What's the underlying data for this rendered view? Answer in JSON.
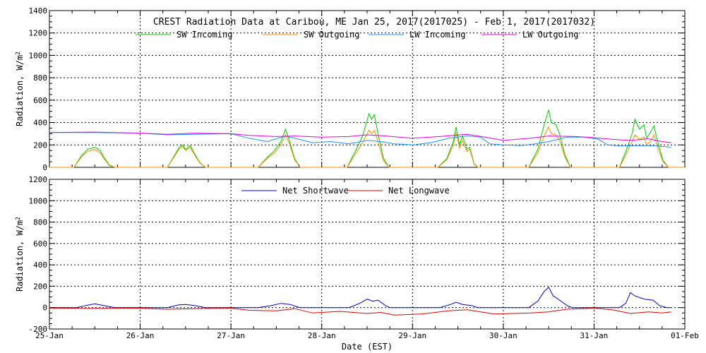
{
  "title": "CREST Radiation Data at Caribou, ME   Jan 25, 2017(2017025) - Feb  1, 2017(2017032)",
  "xlabel": "Date (EST)",
  "x_ticks": [
    "25-Jan",
    "26-Jan",
    "27-Jan",
    "28-Jan",
    "29-Jan",
    "30-Jan",
    "31-Jan",
    "01-Feb"
  ],
  "chart_data": [
    {
      "type": "line",
      "title": "CREST Radiation Data at Caribou, ME   Jan 25, 2017(2017025) - Feb  1, 2017(2017032)",
      "xlabel": "",
      "ylabel": "Radiation, W/m^2",
      "xlim": [
        0,
        7
      ],
      "ylim": [
        0,
        1400
      ],
      "y_ticks": [
        0,
        200,
        400,
        600,
        800,
        1000,
        1200,
        1400
      ],
      "grid": true,
      "legend": "top",
      "series": [
        {
          "name": "SW Incoming",
          "color": "#00cc00",
          "points": [
            [
              0,
              0
            ],
            [
              0.27,
              0
            ],
            [
              0.35,
              100
            ],
            [
              0.42,
              160
            ],
            [
              0.5,
              180
            ],
            [
              0.56,
              150
            ],
            [
              0.6,
              90
            ],
            [
              0.66,
              20
            ],
            [
              0.72,
              0
            ],
            [
              1.3,
              0
            ],
            [
              1.38,
              110
            ],
            [
              1.43,
              180
            ],
            [
              1.47,
              200
            ],
            [
              1.5,
              160
            ],
            [
              1.55,
              195
            ],
            [
              1.6,
              120
            ],
            [
              1.66,
              40
            ],
            [
              1.72,
              0
            ],
            [
              2.3,
              0
            ],
            [
              2.4,
              90
            ],
            [
              2.48,
              150
            ],
            [
              2.55,
              230
            ],
            [
              2.6,
              340
            ],
            [
              2.64,
              250
            ],
            [
              2.7,
              80
            ],
            [
              2.76,
              0
            ],
            [
              3.28,
              0
            ],
            [
              3.38,
              160
            ],
            [
              3.45,
              280
            ],
            [
              3.5,
              420
            ],
            [
              3.52,
              480
            ],
            [
              3.55,
              430
            ],
            [
              3.58,
              470
            ],
            [
              3.62,
              300
            ],
            [
              3.68,
              80
            ],
            [
              3.74,
              0
            ],
            [
              4.28,
              0
            ],
            [
              4.38,
              80
            ],
            [
              4.45,
              230
            ],
            [
              4.48,
              360
            ],
            [
              4.52,
              200
            ],
            [
              4.55,
              280
            ],
            [
              4.6,
              160
            ],
            [
              4.63,
              180
            ],
            [
              4.68,
              30
            ],
            [
              4.72,
              0
            ],
            [
              5.28,
              0
            ],
            [
              5.38,
              160
            ],
            [
              5.45,
              380
            ],
            [
              5.5,
              510
            ],
            [
              5.53,
              400
            ],
            [
              5.58,
              380
            ],
            [
              5.62,
              300
            ],
            [
              5.68,
              110
            ],
            [
              5.74,
              0
            ],
            [
              6.28,
              0
            ],
            [
              6.35,
              140
            ],
            [
              6.42,
              300
            ],
            [
              6.45,
              430
            ],
            [
              6.5,
              340
            ],
            [
              6.55,
              380
            ],
            [
              6.58,
              260
            ],
            [
              6.62,
              310
            ],
            [
              6.66,
              370
            ],
            [
              6.7,
              230
            ],
            [
              6.76,
              60
            ],
            [
              6.82,
              0
            ],
            [
              7,
              0
            ]
          ]
        },
        {
          "name": "SW Outgoing",
          "color": "#ff8c00",
          "points": [
            [
              0,
              0
            ],
            [
              0.27,
              0
            ],
            [
              0.35,
              90
            ],
            [
              0.42,
              140
            ],
            [
              0.5,
              160
            ],
            [
              0.56,
              130
            ],
            [
              0.6,
              80
            ],
            [
              0.66,
              15
            ],
            [
              0.72,
              0
            ],
            [
              1.3,
              0
            ],
            [
              1.38,
              100
            ],
            [
              1.43,
              165
            ],
            [
              1.47,
              185
            ],
            [
              1.5,
              150
            ],
            [
              1.55,
              180
            ],
            [
              1.6,
              110
            ],
            [
              1.66,
              35
            ],
            [
              1.72,
              0
            ],
            [
              2.3,
              0
            ],
            [
              2.4,
              80
            ],
            [
              2.48,
              130
            ],
            [
              2.55,
              200
            ],
            [
              2.6,
              290
            ],
            [
              2.64,
              220
            ],
            [
              2.7,
              70
            ],
            [
              2.76,
              0
            ],
            [
              3.28,
              0
            ],
            [
              3.38,
              130
            ],
            [
              3.45,
              220
            ],
            [
              3.5,
              300
            ],
            [
              3.52,
              330
            ],
            [
              3.55,
              300
            ],
            [
              3.58,
              330
            ],
            [
              3.62,
              230
            ],
            [
              3.68,
              60
            ],
            [
              3.74,
              0
            ],
            [
              4.28,
              0
            ],
            [
              4.38,
              70
            ],
            [
              4.45,
              200
            ],
            [
              4.48,
              310
            ],
            [
              4.52,
              170
            ],
            [
              4.55,
              240
            ],
            [
              4.6,
              140
            ],
            [
              4.63,
              160
            ],
            [
              4.68,
              25
            ],
            [
              4.72,
              0
            ],
            [
              5.28,
              0
            ],
            [
              5.38,
              130
            ],
            [
              5.45,
              280
            ],
            [
              5.5,
              360
            ],
            [
              5.53,
              300
            ],
            [
              5.58,
              290
            ],
            [
              5.62,
              240
            ],
            [
              5.68,
              90
            ],
            [
              5.74,
              0
            ],
            [
              6.28,
              0
            ],
            [
              6.35,
              110
            ],
            [
              6.42,
              230
            ],
            [
              6.45,
              290
            ],
            [
              6.5,
              250
            ],
            [
              6.55,
              270
            ],
            [
              6.58,
              200
            ],
            [
              6.62,
              230
            ],
            [
              6.66,
              290
            ],
            [
              6.7,
              180
            ],
            [
              6.76,
              50
            ],
            [
              6.82,
              0
            ],
            [
              7,
              0
            ]
          ]
        },
        {
          "name": "LW Incoming",
          "color": "#1e90ff",
          "points": [
            [
              0,
              310
            ],
            [
              0.5,
              310
            ],
            [
              1,
              305
            ],
            [
              1.1,
              300
            ],
            [
              1.3,
              290
            ],
            [
              1.6,
              295
            ],
            [
              2,
              300
            ],
            [
              2.2,
              260
            ],
            [
              2.4,
              230
            ],
            [
              2.6,
              280
            ],
            [
              2.75,
              250
            ],
            [
              2.9,
              220
            ],
            [
              3.1,
              230
            ],
            [
              3.3,
              210
            ],
            [
              3.5,
              240
            ],
            [
              3.65,
              230
            ],
            [
              3.8,
              210
            ],
            [
              4,
              200
            ],
            [
              4.2,
              220
            ],
            [
              4.4,
              260
            ],
            [
              4.6,
              280
            ],
            [
              4.75,
              270
            ],
            [
              4.85,
              210
            ],
            [
              5,
              200
            ],
            [
              5.2,
              195
            ],
            [
              5.35,
              210
            ],
            [
              5.5,
              230
            ],
            [
              5.6,
              250
            ],
            [
              5.7,
              270
            ],
            [
              5.9,
              270
            ],
            [
              6.05,
              250
            ],
            [
              6.15,
              200
            ],
            [
              6.3,
              190
            ],
            [
              6.5,
              195
            ],
            [
              6.7,
              190
            ],
            [
              6.85,
              180
            ]
          ]
        },
        {
          "name": "LW Outgoing",
          "color": "#e100e1",
          "points": [
            [
              0,
              310
            ],
            [
              0.5,
              315
            ],
            [
              1,
              305
            ],
            [
              1.3,
              295
            ],
            [
              1.6,
              305
            ],
            [
              2,
              300
            ],
            [
              2.2,
              285
            ],
            [
              2.5,
              275
            ],
            [
              2.7,
              280
            ],
            [
              3,
              270
            ],
            [
              3.3,
              275
            ],
            [
              3.5,
              290
            ],
            [
              3.7,
              280
            ],
            [
              4,
              260
            ],
            [
              4.3,
              275
            ],
            [
              4.6,
              295
            ],
            [
              4.8,
              270
            ],
            [
              5,
              240
            ],
            [
              5.3,
              260
            ],
            [
              5.5,
              280
            ],
            [
              5.8,
              275
            ],
            [
              6,
              265
            ],
            [
              6.2,
              250
            ],
            [
              6.4,
              240
            ],
            [
              6.6,
              255
            ],
            [
              6.75,
              230
            ],
            [
              6.85,
              220
            ]
          ]
        }
      ]
    },
    {
      "type": "line",
      "title": "",
      "xlabel": "Date (EST)",
      "ylabel": "Radiation, W/m^2",
      "xlim": [
        0,
        7
      ],
      "ylim": [
        -200,
        1200
      ],
      "y_ticks": [
        -200,
        0,
        200,
        400,
        600,
        800,
        1000,
        1200
      ],
      "grid": true,
      "legend": "top",
      "series": [
        {
          "name": "Net Shortwave",
          "color": "#0000cc",
          "points": [
            [
              0,
              0
            ],
            [
              0.3,
              0
            ],
            [
              0.4,
              20
            ],
            [
              0.5,
              35
            ],
            [
              0.6,
              20
            ],
            [
              0.72,
              0
            ],
            [
              1.3,
              0
            ],
            [
              1.42,
              25
            ],
            [
              1.5,
              30
            ],
            [
              1.6,
              20
            ],
            [
              1.72,
              0
            ],
            [
              2.3,
              0
            ],
            [
              2.45,
              20
            ],
            [
              2.55,
              40
            ],
            [
              2.65,
              30
            ],
            [
              2.76,
              0
            ],
            [
              3.3,
              0
            ],
            [
              3.42,
              40
            ],
            [
              3.5,
              80
            ],
            [
              3.56,
              60
            ],
            [
              3.62,
              70
            ],
            [
              3.7,
              20
            ],
            [
              3.75,
              0
            ],
            [
              4.3,
              0
            ],
            [
              4.42,
              30
            ],
            [
              4.48,
              50
            ],
            [
              4.55,
              30
            ],
            [
              4.65,
              20
            ],
            [
              4.72,
              0
            ],
            [
              5.28,
              0
            ],
            [
              5.38,
              60
            ],
            [
              5.45,
              150
            ],
            [
              5.5,
              190
            ],
            [
              5.55,
              110
            ],
            [
              5.62,
              70
            ],
            [
              5.7,
              20
            ],
            [
              5.76,
              0
            ],
            [
              6.28,
              0
            ],
            [
              6.35,
              40
            ],
            [
              6.4,
              140
            ],
            [
              6.45,
              110
            ],
            [
              6.55,
              80
            ],
            [
              6.65,
              70
            ],
            [
              6.72,
              20
            ],
            [
              6.8,
              0
            ],
            [
              6.85,
              0
            ]
          ]
        },
        {
          "name": "Net Longwave",
          "color": "#dd0000",
          "points": [
            [
              0,
              -5
            ],
            [
              0.5,
              -8
            ],
            [
              1,
              -5
            ],
            [
              1.3,
              -15
            ],
            [
              1.6,
              -10
            ],
            [
              2,
              -5
            ],
            [
              2.2,
              -25
            ],
            [
              2.5,
              -30
            ],
            [
              2.7,
              -10
            ],
            [
              2.9,
              -50
            ],
            [
              3.2,
              -35
            ],
            [
              3.5,
              -55
            ],
            [
              3.65,
              -45
            ],
            [
              3.8,
              -70
            ],
            [
              4.1,
              -60
            ],
            [
              4.4,
              -30
            ],
            [
              4.6,
              -20
            ],
            [
              4.75,
              -40
            ],
            [
              4.9,
              -60
            ],
            [
              5.1,
              -55
            ],
            [
              5.3,
              -50
            ],
            [
              5.5,
              -40
            ],
            [
              5.7,
              -15
            ],
            [
              6,
              -5
            ],
            [
              6.2,
              -20
            ],
            [
              6.4,
              -55
            ],
            [
              6.6,
              -40
            ],
            [
              6.75,
              -50
            ],
            [
              6.85,
              -40
            ]
          ]
        }
      ]
    }
  ]
}
